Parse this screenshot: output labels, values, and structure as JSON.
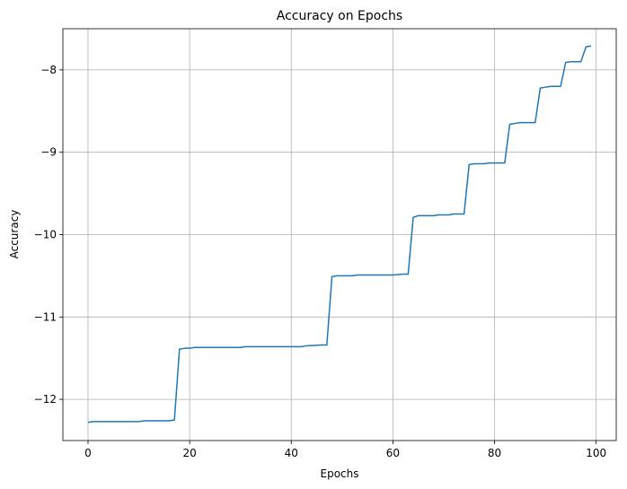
{
  "chart_data": {
    "type": "line",
    "title": "Accuracy on Epochs",
    "xlabel": "Epochs",
    "ylabel": "Accuracy",
    "xlim": [
      -4.95,
      103.95
    ],
    "ylim": [
      -12.5,
      -7.5
    ],
    "xticks": [
      0,
      20,
      40,
      60,
      80,
      100
    ],
    "yticks": [
      -12,
      -11,
      -10,
      -9,
      -8
    ],
    "ytick_labels": [
      "−12",
      "−11",
      "−10",
      "−9",
      "−8"
    ],
    "grid": true,
    "series": [
      {
        "color": "#1f77b4",
        "points": [
          [
            0,
            -12.28
          ],
          [
            1,
            -12.27
          ],
          [
            10,
            -12.27
          ],
          [
            11,
            -12.26
          ],
          [
            16,
            -12.26
          ],
          [
            17,
            -12.25
          ],
          [
            18,
            -11.39
          ],
          [
            19,
            -11.38
          ],
          [
            20,
            -11.38
          ],
          [
            21,
            -11.37
          ],
          [
            22,
            -11.37
          ],
          [
            30,
            -11.37
          ],
          [
            31,
            -11.36
          ],
          [
            42,
            -11.36
          ],
          [
            43,
            -11.35
          ],
          [
            46,
            -11.34
          ],
          [
            47,
            -11.34
          ],
          [
            48,
            -10.51
          ],
          [
            49,
            -10.5
          ],
          [
            52,
            -10.5
          ],
          [
            53,
            -10.49
          ],
          [
            60,
            -10.49
          ],
          [
            62,
            -10.48
          ],
          [
            63,
            -10.48
          ],
          [
            64,
            -9.79
          ],
          [
            65,
            -9.77
          ],
          [
            68,
            -9.77
          ],
          [
            69,
            -9.76
          ],
          [
            71,
            -9.76
          ],
          [
            72,
            -9.75
          ],
          [
            74,
            -9.75
          ],
          [
            75,
            -9.15
          ],
          [
            76,
            -9.14
          ],
          [
            78,
            -9.14
          ],
          [
            79,
            -9.13
          ],
          [
            82,
            -9.13
          ],
          [
            83,
            -8.66
          ],
          [
            84,
            -8.65
          ],
          [
            85,
            -8.64
          ],
          [
            88,
            -8.64
          ],
          [
            89,
            -8.22
          ],
          [
            90,
            -8.21
          ],
          [
            91,
            -8.2
          ],
          [
            93,
            -8.2
          ],
          [
            94,
            -7.91
          ],
          [
            95,
            -7.9
          ],
          [
            97,
            -7.9
          ],
          [
            98,
            -7.72
          ],
          [
            99,
            -7.71
          ]
        ]
      }
    ]
  }
}
